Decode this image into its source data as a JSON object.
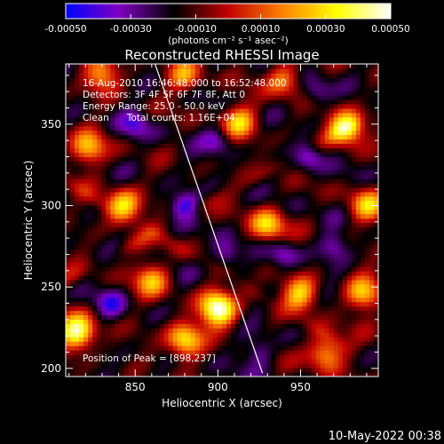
{
  "chart_data": {
    "type": "heatmap",
    "title": "Reconstructed RHESSI Image",
    "xlabel": "Heliocentric X (arcsec)",
    "ylabel": "Heliocentric Y (arcsec)",
    "xlim": [
      808,
      997
    ],
    "ylim": [
      195,
      387
    ],
    "x_ticks": [
      850,
      900,
      950
    ],
    "y_ticks": [
      200,
      250,
      300,
      350
    ],
    "colorbar": {
      "label": "(photons cm⁻² s⁻¹ asec⁻²)",
      "range": [
        -0.0005,
        0.0005
      ],
      "ticks": [
        "-0.00050",
        "-0.00030",
        "-0.00010",
        "0.00010",
        "0.00030",
        "0.00050"
      ],
      "tick_values": [
        -0.0005,
        -0.0003,
        -0.0001,
        0.0001,
        0.0003,
        0.0005
      ],
      "colors": [
        "#0000ff",
        "#8000c0",
        "#000000",
        "#c00000",
        "#ff8000",
        "#ffff00",
        "#ffffff"
      ]
    },
    "info_lines": [
      "16-Aug-2010 16:46:48.000 to 16:52:48.000",
      "Detectors: 3F 4F 5F 6F 7F 8F, Att 0",
      "Energy Range: 25.0 - 50.0 keV",
      "Clean      Total counts: 1.16E+04"
    ],
    "peak_label": "Position of Peak = [898,237]",
    "peak": [
      898,
      237
    ],
    "limb_line": {
      "x": [
        862,
        927
      ],
      "y": [
        387,
        197
      ]
    },
    "hotspots": [
      {
        "x": 900,
        "y": 237,
        "value": 0.0005
      },
      {
        "x": 815,
        "y": 222,
        "value": 0.00045
      },
      {
        "x": 978,
        "y": 348,
        "value": 0.0004
      },
      {
        "x": 880,
        "y": 218,
        "value": 0.00035
      },
      {
        "x": 843,
        "y": 300,
        "value": 0.0003
      },
      {
        "x": 913,
        "y": 352,
        "value": 0.00025
      },
      {
        "x": 930,
        "y": 288,
        "value": 0.00028
      },
      {
        "x": 950,
        "y": 246,
        "value": 0.00025
      },
      {
        "x": 988,
        "y": 246,
        "value": 0.00025
      },
      {
        "x": 965,
        "y": 210,
        "value": 0.00025
      },
      {
        "x": 990,
        "y": 300,
        "value": 0.00022
      },
      {
        "x": 822,
        "y": 335,
        "value": 0.00022
      },
      {
        "x": 860,
        "y": 255,
        "value": 0.0002
      },
      {
        "x": 940,
        "y": 378,
        "value": 0.00018
      },
      {
        "x": 880,
        "y": 380,
        "value": 0.00018
      },
      {
        "x": 830,
        "y": 380,
        "value": 0.00018
      }
    ],
    "coldspots": [
      {
        "x": 880,
        "y": 300,
        "value": -0.0003
      },
      {
        "x": 905,
        "y": 270,
        "value": -0.00025
      },
      {
        "x": 955,
        "y": 330,
        "value": -0.00025
      },
      {
        "x": 940,
        "y": 270,
        "value": -0.0002
      },
      {
        "x": 850,
        "y": 350,
        "value": -0.0002
      },
      {
        "x": 970,
        "y": 275,
        "value": -0.0002
      },
      {
        "x": 900,
        "y": 340,
        "value": -0.0002
      },
      {
        "x": 835,
        "y": 240,
        "value": -0.0002
      },
      {
        "x": 960,
        "y": 370,
        "value": -0.00018
      },
      {
        "x": 925,
        "y": 210,
        "value": -0.00018
      }
    ]
  },
  "footer": {
    "timestamp": "10-May-2022 00:38"
  }
}
